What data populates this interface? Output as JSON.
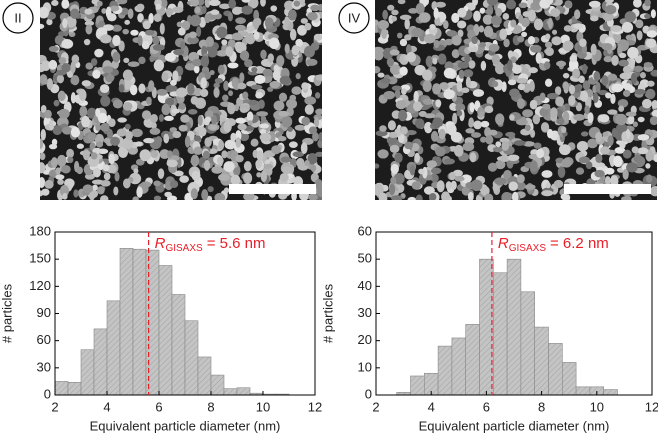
{
  "chart_data": [
    {
      "type": "histogram",
      "panel_label": "II",
      "bins": [
        2,
        2.5,
        3,
        3.5,
        4,
        4.5,
        5,
        5.5,
        6,
        6.5,
        7,
        7.5,
        8,
        8.5,
        9,
        9.5,
        10,
        10.5,
        11
      ],
      "values": [
        15,
        14,
        50,
        73,
        104,
        162,
        161,
        160,
        143,
        111,
        82,
        42,
        22,
        7,
        8,
        2,
        1,
        1
      ],
      "color": "#c4c4c4",
      "xlim": [
        2,
        12
      ],
      "xticks": [
        2,
        4,
        6,
        8,
        10,
        12
      ],
      "ylim": [
        0,
        180
      ],
      "yticks": [
        0,
        30,
        60,
        90,
        120,
        150,
        180
      ],
      "xlabel": "Equivalent particle diameter (nm)",
      "ylabel": "# particles",
      "marker_x": 5.6,
      "marker_color": "#e8202a",
      "annotation": {
        "symbol": "R",
        "subscript": "GISAXS",
        "text": "= 5.6 nm"
      }
    },
    {
      "type": "histogram",
      "panel_label": "IV",
      "bins": [
        2.75,
        3.25,
        3.75,
        4.25,
        4.75,
        5.25,
        5.75,
        6.25,
        6.75,
        7.25,
        7.75,
        8.25,
        8.75,
        9.25,
        9.75,
        10.25,
        10.75
      ],
      "values": [
        1,
        7,
        8,
        18,
        21,
        26,
        50,
        45,
        50,
        38,
        25,
        19,
        12,
        3,
        3,
        2
      ],
      "color": "#c4c4c4",
      "xlim": [
        2,
        12
      ],
      "xticks": [
        2,
        4,
        6,
        8,
        10,
        12
      ],
      "ylim": [
        0,
        60
      ],
      "yticks": [
        0,
        10,
        20,
        30,
        40,
        50,
        60
      ],
      "xlabel": "Equivalent particle diameter (nm)",
      "ylabel": "# particles",
      "marker_x": 6.2,
      "marker_color": "#e8202a",
      "annotation": {
        "symbol": "R",
        "subscript": "GISAXS",
        "text": "= 6.2 nm"
      }
    }
  ]
}
